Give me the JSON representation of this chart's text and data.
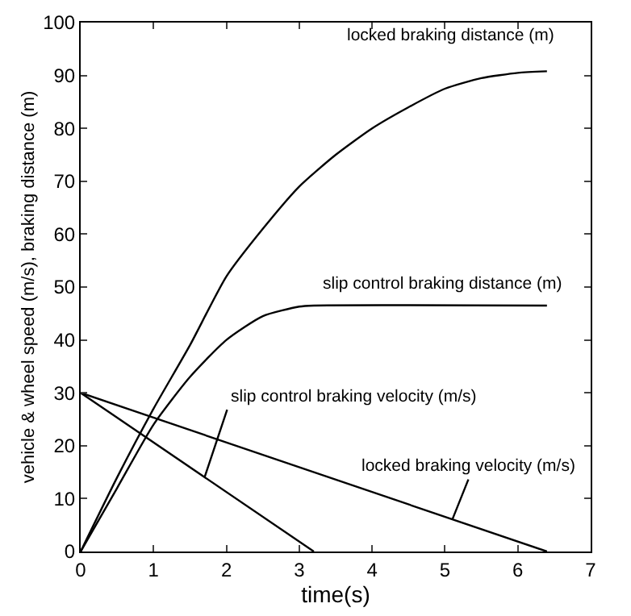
{
  "chart_data": {
    "type": "line",
    "xlabel": "time(s)",
    "ylabel": "vehicle & wheel speed (m/s), braking distance (m)",
    "xlim": [
      0,
      7
    ],
    "ylim": [
      0,
      100
    ],
    "xticks": [
      0,
      1,
      2,
      3,
      4,
      5,
      6,
      7
    ],
    "yticks": [
      0,
      10,
      20,
      30,
      40,
      50,
      60,
      70,
      80,
      90,
      100
    ],
    "grid": false,
    "marker": "none",
    "line_style": "solid",
    "series": [
      {
        "color": "#000000",
        "x": [
          0,
          0.5,
          1,
          1.5,
          2,
          2.5,
          3,
          3.5,
          4,
          4.5,
          5,
          5.5,
          6,
          6.4
        ],
        "values": [
          0,
          14,
          27,
          39,
          52,
          61,
          69,
          75,
          80,
          84,
          87.5,
          89.5,
          90.5,
          90.8
        ]
      },
      {
        "color": "#000000",
        "x": [
          0,
          0.5,
          1,
          1.5,
          2,
          2.5,
          3,
          3.2,
          6.4
        ],
        "values": [
          0,
          12,
          24,
          33,
          40,
          44.5,
          46.3,
          46.5,
          46.5
        ]
      },
      {
        "color": "#000000",
        "x": [
          0,
          3.2
        ],
        "values": [
          30,
          0
        ]
      },
      {
        "color": "#000000",
        "x": [
          0,
          6.4
        ],
        "values": [
          30,
          0
        ]
      }
    ],
    "annotations": [
      {
        "text": "locked braking distance (m)",
        "x": 6.4,
        "y": 90.8
      },
      {
        "text": "slip control braking distance (m)",
        "x": 6.4,
        "y": 46.5
      },
      {
        "text": "slip control braking velocity (m/s)",
        "x": 1.7,
        "y": 14
      },
      {
        "text": "locked braking velocity (m/s)",
        "x": 5.1,
        "y": 6
      }
    ]
  }
}
